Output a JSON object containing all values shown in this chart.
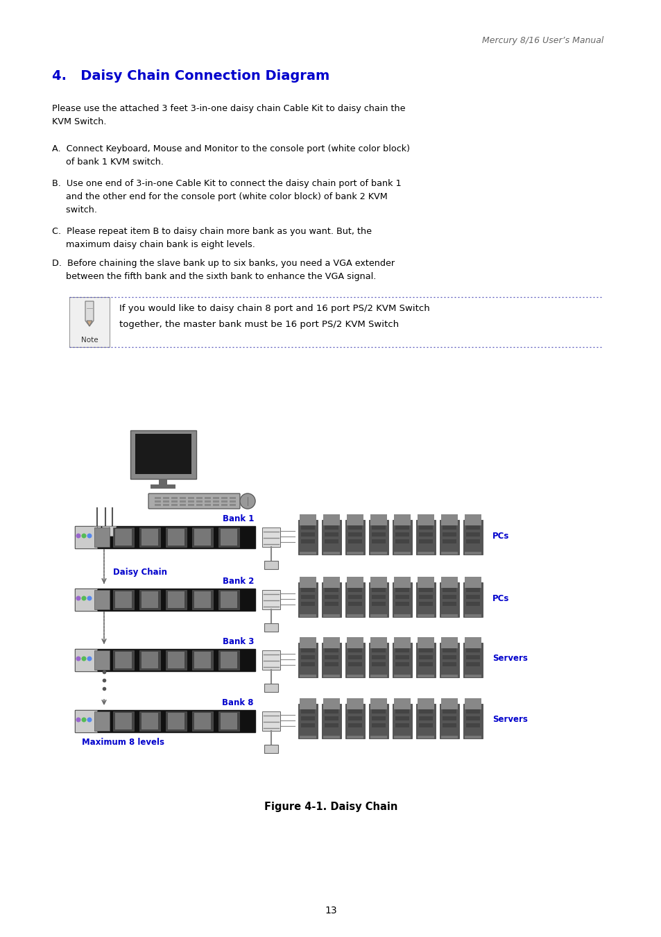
{
  "header_text": "Mercury 8/16 User’s Manual",
  "title": "4.   Daisy Chain Connection Diagram",
  "title_color": "#0000CC",
  "para0": "Please use the attached 3 feet 3-in-one daisy chain Cable Kit to daisy chain the\nKVM Switch.",
  "item_a": "A.  Connect Keyboard, Mouse and Monitor to the console port (white color block)\n     of bank 1 KVM switch.",
  "item_b": "B.  Use one end of 3-in-one Cable Kit to connect the daisy chain port of bank 1\n     and the other end for the console port (white color block) of bank 2 KVM\n     switch.",
  "item_c": "C.  Please repeat item B to daisy chain more bank as you want. But, the\n     maximum daisy chain bank is eight levels.",
  "item_d": "D.  Before chaining the slave bank up to six banks, you need a VGA extender\n     between the fifth bank and the sixth bank to enhance the VGA signal.",
  "note_text1": "If you would like to daisy chain 8 port and 16 port PS/2 KVM Switch",
  "note_text2": "together, the master bank must be 16 port PS/2 KVM Switch",
  "figure_caption": "Figure 4-1. Daisy Chain",
  "page_number": "13",
  "bg_color": "#ffffff",
  "text_color": "#000000",
  "bank_labels": [
    "Bank 1",
    "Bank 2",
    "Bank 3",
    "Bank 8"
  ],
  "side_labels": [
    "PCs",
    "PCs",
    "Servers",
    "Servers"
  ],
  "daisy_chain_label": "Daisy Chain",
  "max_levels_label": "Maximum 8 levels",
  "note_color": "#4444AA",
  "label_color": "#0000CC"
}
